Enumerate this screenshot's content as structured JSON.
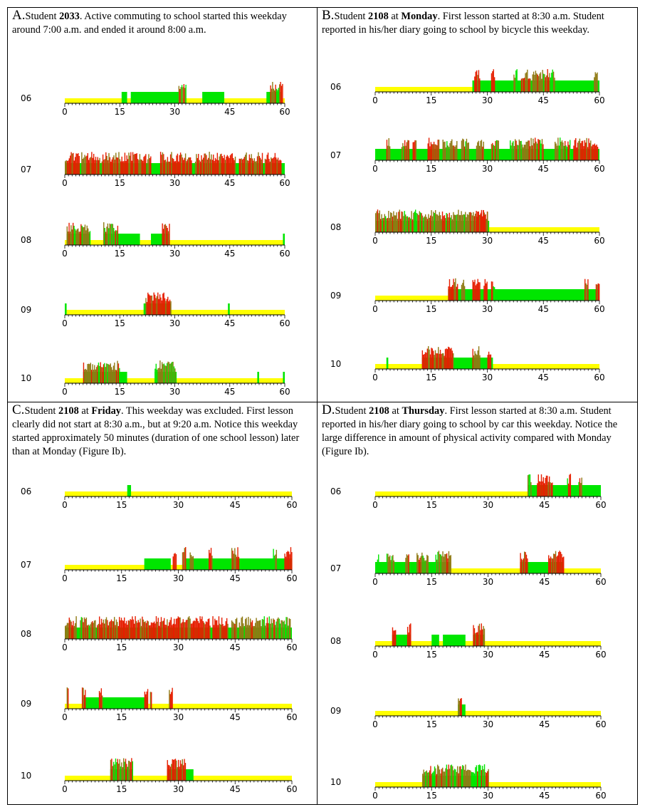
{
  "colors": {
    "baseline": "#ffff00",
    "moderate": "#00e600",
    "vigorous_mix": "#8f7a14",
    "vigorous": "#e61e00"
  },
  "panels": [
    {
      "id": "A",
      "letter": "A.",
      "caption": [
        {
          "t": "Student "
        },
        {
          "t": "2033",
          "b": true
        },
        {
          "t": ". Active commuting to school started this weekday around 7:00 a.m. and ended it around 8:00 a.m."
        }
      ]
    },
    {
      "id": "B",
      "letter": "B.",
      "caption": [
        {
          "t": "Student "
        },
        {
          "t": "2108",
          "b": true
        },
        {
          "t": " at "
        },
        {
          "t": "Monday",
          "b": true
        },
        {
          "t": ". First lesson started at 8:30 a.m. Student reported in his/her diary going to school by bicycle this weekday."
        }
      ]
    },
    {
      "id": "C",
      "letter": "C.",
      "caption": [
        {
          "t": "Student "
        },
        {
          "t": "2108",
          "b": true
        },
        {
          "t": " at "
        },
        {
          "t": "Friday",
          "b": true
        },
        {
          "t": ". This weekday was excluded. First lesson clearly did not start at 8:30 a.m., but at 9:20 a.m. Notice this weekday started approximately 50 minutes (duration of one school lesson) later than at Monday (Figure Ib)."
        }
      ]
    },
    {
      "id": "D",
      "letter": "D.",
      "caption": [
        {
          "t": "Student "
        },
        {
          "t": "2108",
          "b": true
        },
        {
          "t": " at "
        },
        {
          "t": "Thursday",
          "b": true
        },
        {
          "t": ". First lesson started at 8:30 a.m. Student reported in his/her diary going to school by car this weekday. Notice the large difference in amount of physical activity compared with Monday (Figure Ib)."
        }
      ]
    }
  ],
  "chart_data": [
    {
      "type": "bar",
      "panel": "A",
      "x_ticks": [
        "0",
        "15",
        "30",
        "45",
        "60"
      ],
      "xlim": [
        0,
        60
      ],
      "rows": [
        {
          "hour": "06",
          "green": [
            [
              15.5,
              17
            ],
            [
              18,
              31.5
            ],
            [
              37.5,
              43.5
            ],
            [
              55,
              59
            ]
          ],
          "bursts": [
            [
              31,
              33,
              "mix"
            ],
            [
              56,
              59.5,
              "mix"
            ]
          ]
        },
        {
          "hour": "07",
          "green": [
            [
              0,
              60
            ]
          ],
          "bursts": [
            [
              0,
              4,
              "red"
            ],
            [
              4.5,
              9.5,
              "red"
            ],
            [
              10,
              22,
              "red"
            ],
            [
              22.5,
              23.5,
              "red"
            ],
            [
              26,
              34.5,
              "red"
            ],
            [
              35.5,
              46.5,
              "red"
            ],
            [
              47.5,
              54,
              "red"
            ],
            [
              54.5,
              59,
              "red"
            ]
          ]
        },
        {
          "hour": "08",
          "green": [
            [
              0.5,
              7
            ],
            [
              10.5,
              20.5
            ],
            [
              23.5,
              28.5
            ],
            [
              59.5,
              60
            ]
          ],
          "bursts": [
            [
              0.5,
              7,
              "mix"
            ],
            [
              10.5,
              14.5,
              "mix"
            ],
            [
              26.5,
              28.5,
              "red"
            ]
          ]
        },
        {
          "hour": "09",
          "green": [
            [
              0,
              0.5
            ],
            [
              21.5,
              29
            ],
            [
              44.5,
              45
            ]
          ],
          "bursts": [
            [
              22,
              29,
              "red"
            ]
          ]
        },
        {
          "hour": "10",
          "green": [
            [
              5,
              17
            ],
            [
              24.5,
              30.5
            ],
            [
              52.5,
              53
            ],
            [
              59.5,
              60
            ]
          ],
          "bursts": [
            [
              5,
              15,
              "mix"
            ],
            [
              24.5,
              30,
              "mix"
            ]
          ]
        }
      ]
    },
    {
      "type": "bar",
      "panel": "B",
      "x_ticks": [
        "0",
        "15",
        "30",
        "45",
        "60"
      ],
      "xlim": [
        0,
        60
      ],
      "rows": [
        {
          "hour": "06",
          "green": [
            [
              26,
              60
            ]
          ],
          "bursts": [
            [
              26.5,
              28,
              "red"
            ],
            [
              31,
              32,
              "red"
            ],
            [
              37,
              38,
              "mix"
            ],
            [
              39,
              41.5,
              "red"
            ],
            [
              42,
              48,
              "mix"
            ],
            [
              58.5,
              59.5,
              "red"
            ]
          ]
        },
        {
          "hour": "07",
          "green": [
            [
              0,
              60
            ]
          ],
          "bursts": [
            [
              3,
              4,
              "mix"
            ],
            [
              7,
              9,
              "mix"
            ],
            [
              10,
              11,
              "red"
            ],
            [
              14,
              17,
              "red"
            ],
            [
              18,
              22,
              "mix"
            ],
            [
              23,
              25,
              "mix"
            ],
            [
              27,
              29,
              "mix"
            ],
            [
              31,
              33,
              "mix"
            ],
            [
              36,
              45,
              "mix"
            ],
            [
              48,
              52,
              "mix"
            ],
            [
              53,
              59.5,
              "red"
            ]
          ]
        },
        {
          "hour": "08",
          "green": [
            [
              0,
              30.5
            ]
          ],
          "bursts": [
            [
              0,
              30,
              "mix"
            ],
            [
              27,
              30,
              "red"
            ]
          ]
        },
        {
          "hour": "09",
          "green": [
            [
              19.5,
              60
            ]
          ],
          "bursts": [
            [
              19.5,
              22,
              "red"
            ],
            [
              23,
              24,
              "mix"
            ],
            [
              26,
              28,
              "red"
            ],
            [
              29,
              30,
              "red"
            ],
            [
              31,
              32,
              "mix"
            ],
            [
              56,
              57,
              "red"
            ],
            [
              59,
              60,
              "red"
            ]
          ]
        },
        {
          "hour": "10",
          "green": [
            [
              3,
              3.5
            ],
            [
              12.5,
              31.5
            ]
          ],
          "bursts": [
            [
              12.5,
              21,
              "red"
            ],
            [
              26,
              28,
              "mix"
            ],
            [
              30,
              31,
              "red"
            ]
          ]
        }
      ]
    },
    {
      "type": "bar",
      "panel": "C",
      "x_ticks": [
        "0",
        "15",
        "30",
        "45",
        "60"
      ],
      "xlim": [
        0,
        60
      ],
      "rows": [
        {
          "hour": "06",
          "green": [
            [
              16.5,
              17.5
            ]
          ],
          "bursts": []
        },
        {
          "hour": "07",
          "green": [
            [
              21,
              28
            ],
            [
              32,
              60
            ]
          ],
          "bursts": [
            [
              28.5,
              29.5,
              "red"
            ],
            [
              31,
              32,
              "red"
            ],
            [
              33,
              34,
              "mix"
            ],
            [
              38,
              39,
              "red"
            ],
            [
              44,
              46,
              "red"
            ],
            [
              55,
              56,
              "mix"
            ],
            [
              58,
              60,
              "red"
            ]
          ]
        },
        {
          "hour": "08",
          "green": [
            [
              0,
              60
            ]
          ],
          "bursts": [
            [
              0,
              3,
              "mix"
            ],
            [
              4,
              8,
              "mix"
            ],
            [
              8.5,
              38.5,
              "red"
            ],
            [
              39,
              43,
              "red"
            ],
            [
              44,
              45.5,
              "mix"
            ],
            [
              46,
              59.5,
              "mix"
            ]
          ]
        },
        {
          "hour": "09",
          "green": [
            [
              5,
              22
            ]
          ],
          "bursts": [
            [
              0.5,
              1,
              "red"
            ],
            [
              4.5,
              5.5,
              "red"
            ],
            [
              9,
              10,
              "red"
            ],
            [
              21,
              22,
              "red"
            ],
            [
              22.5,
              23,
              "red"
            ],
            [
              27.5,
              28.5,
              "red"
            ]
          ]
        },
        {
          "hour": "10",
          "green": [
            [
              12,
              18
            ],
            [
              27,
              34
            ]
          ],
          "bursts": [
            [
              12,
              18,
              "mix"
            ],
            [
              27,
              32,
              "red"
            ]
          ]
        }
      ]
    },
    {
      "type": "bar",
      "panel": "D",
      "x_ticks": [
        "0",
        "15",
        "30",
        "45",
        "60"
      ],
      "xlim": [
        0,
        60
      ],
      "rows": [
        {
          "hour": "06",
          "green": [
            [
              40.5,
              60
            ]
          ],
          "bursts": [
            [
              40.5,
              41.5,
              "mix"
            ],
            [
              43,
              47,
              "red"
            ],
            [
              51,
              52,
              "mix"
            ],
            [
              54,
              55,
              "mix"
            ]
          ]
        },
        {
          "hour": "07",
          "green": [
            [
              0,
              20
            ],
            [
              38.5,
              50
            ]
          ],
          "bursts": [
            [
              0.5,
              1,
              "mix"
            ],
            [
              3,
              5,
              "mix"
            ],
            [
              8,
              9,
              "mix"
            ],
            [
              11,
              14,
              "mix"
            ],
            [
              16,
              20,
              "mix"
            ],
            [
              38.5,
              40.5,
              "red"
            ],
            [
              46,
              50,
              "red"
            ]
          ]
        },
        {
          "hour": "08",
          "green": [
            [
              4.5,
              9.5
            ],
            [
              15,
              17
            ],
            [
              18,
              24
            ],
            [
              26,
              29
            ]
          ],
          "bursts": [
            [
              4.5,
              5.5,
              "red"
            ],
            [
              8.5,
              9.5,
              "red"
            ],
            [
              26,
              29,
              "red"
            ]
          ]
        },
        {
          "hour": "09",
          "green": [
            [
              22,
              24
            ]
          ],
          "bursts": [
            [
              22,
              23,
              "red"
            ]
          ]
        },
        {
          "hour": "10",
          "green": [
            [
              12.5,
              30
            ]
          ],
          "bursts": [
            [
              12.5,
              30,
              "mix"
            ]
          ]
        }
      ]
    }
  ]
}
